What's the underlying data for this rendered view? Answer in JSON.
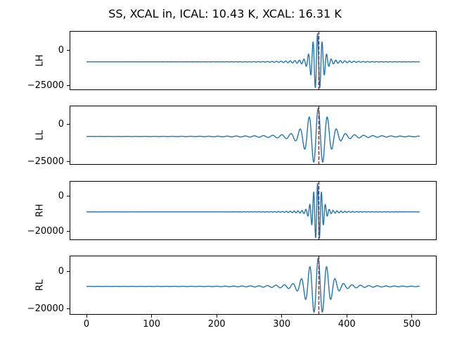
{
  "figure": {
    "background": "#ffffff",
    "frame_color": "#000000"
  },
  "chart_data": {
    "type": "line",
    "title": "SS, XCAL in, ICAL: 10.43 K, XCAL: 16.31 K",
    "grid": false,
    "legend": "none",
    "x_range": [
      0,
      512
    ],
    "xlim": [
      -26,
      538
    ],
    "xticks": [
      {
        "value": 0,
        "label": "0"
      },
      {
        "value": 100,
        "label": "100"
      },
      {
        "value": 200,
        "label": "200"
      },
      {
        "value": 300,
        "label": "300"
      },
      {
        "value": 400,
        "label": "400"
      },
      {
        "value": 500,
        "label": "500"
      }
    ],
    "series_color": "#1f77b4",
    "marker_line": {
      "x": 357,
      "color": "#d40000",
      "style": "dashed"
    },
    "subplots": [
      {
        "ylabel": "LH",
        "yticks": [
          {
            "value": 0,
            "label": "0"
          },
          {
            "value": -25000,
            "label": "−25000"
          }
        ],
        "ylim": [
          -28100,
          13900
        ],
        "waveform": {
          "baseline": -8000,
          "amplitude": 20000,
          "center": 355,
          "wavelength": 7,
          "sigma": 11,
          "tail": 0.15,
          "tail_width": 25
        }
      },
      {
        "ylabel": "LL",
        "yticks": [
          {
            "value": 0,
            "label": "0"
          },
          {
            "value": -25000,
            "label": "−25000"
          }
        ],
        "ylim": [
          -27100,
          12800
        ],
        "waveform": {
          "baseline": -8000,
          "amplitude": 19000,
          "center": 356,
          "wavelength": 14,
          "sigma": 21,
          "tail": 0.27,
          "tail_width": 35
        }
      },
      {
        "ylabel": "RH",
        "yticks": [
          {
            "value": 0,
            "label": "0"
          },
          {
            "value": -20000,
            "label": "−20000"
          }
        ],
        "ylim": [
          -25000,
          8500
        ],
        "waveform": {
          "baseline": -9000,
          "amplitude": 16000,
          "center": 355,
          "wavelength": 6,
          "sigma": 9.5,
          "tail": 0.12,
          "tail_width": 22
        }
      },
      {
        "ylabel": "RL",
        "yticks": [
          {
            "value": 0,
            "label": "0"
          },
          {
            "value": -20000,
            "label": "−20000"
          }
        ],
        "ylim": [
          -23100,
          8400
        ],
        "waveform": {
          "baseline": -8000,
          "amplitude": 15000,
          "center": 356,
          "wavelength": 13,
          "sigma": 20,
          "tail": 0.25,
          "tail_width": 33
        }
      }
    ]
  }
}
